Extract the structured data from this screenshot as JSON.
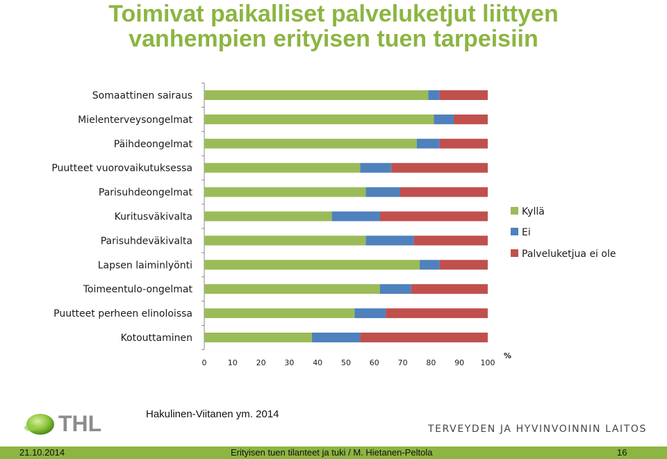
{
  "title_line1": "Toimivat paikalliset palveluketjut liittyen",
  "title_line2": "vanhempien erityisen tuen tarpeisiin",
  "source": "Hakulinen-Viitanen ym. 2014",
  "logo_text": "THL",
  "organization": "TERVEYDEN JA HYVINVOINNIN LAITOS",
  "footer": {
    "date": "21.10.2014",
    "center": "Erityisen tuen tilanteet ja tuki / M. Hietanen-Peltola",
    "page": "16"
  },
  "colors": {
    "title": "#8cb542",
    "footer": "#8cb542"
  },
  "chart_data": {
    "type": "bar",
    "orientation": "horizontal",
    "stacked": true,
    "categories": [
      "Somaattinen sairaus",
      "Mielenterveysongelmat",
      "Päihdeongelmat",
      "Puutteet vuorovaikutuksessa",
      "Parisuhdeongelmat",
      "Kuritusväkivalta",
      "Parisuhdeväkivalta",
      "Lapsen laiminlyönti",
      "Toimeentulo-ongelmat",
      "Puutteet perheen elinoloissa",
      "Kotouttaminen"
    ],
    "series": [
      {
        "name": "Kyllä",
        "color": "#9bbb59",
        "values": [
          79,
          81,
          75,
          55,
          57,
          45,
          57,
          76,
          62,
          53,
          38
        ]
      },
      {
        "name": "Ei",
        "color": "#4f81bd",
        "values": [
          4,
          7,
          8,
          11,
          12,
          17,
          17,
          7,
          11,
          11,
          17
        ]
      },
      {
        "name": "Palveluketjua ei ole",
        "color": "#c0504d",
        "values": [
          17,
          12,
          17,
          34,
          31,
          38,
          26,
          17,
          27,
          36,
          45
        ]
      }
    ],
    "xlim": [
      0,
      100
    ],
    "xticks": [
      0,
      10,
      20,
      30,
      40,
      50,
      60,
      70,
      80,
      90,
      100
    ],
    "unit": "%",
    "legend_position": "right",
    "grid": false
  }
}
